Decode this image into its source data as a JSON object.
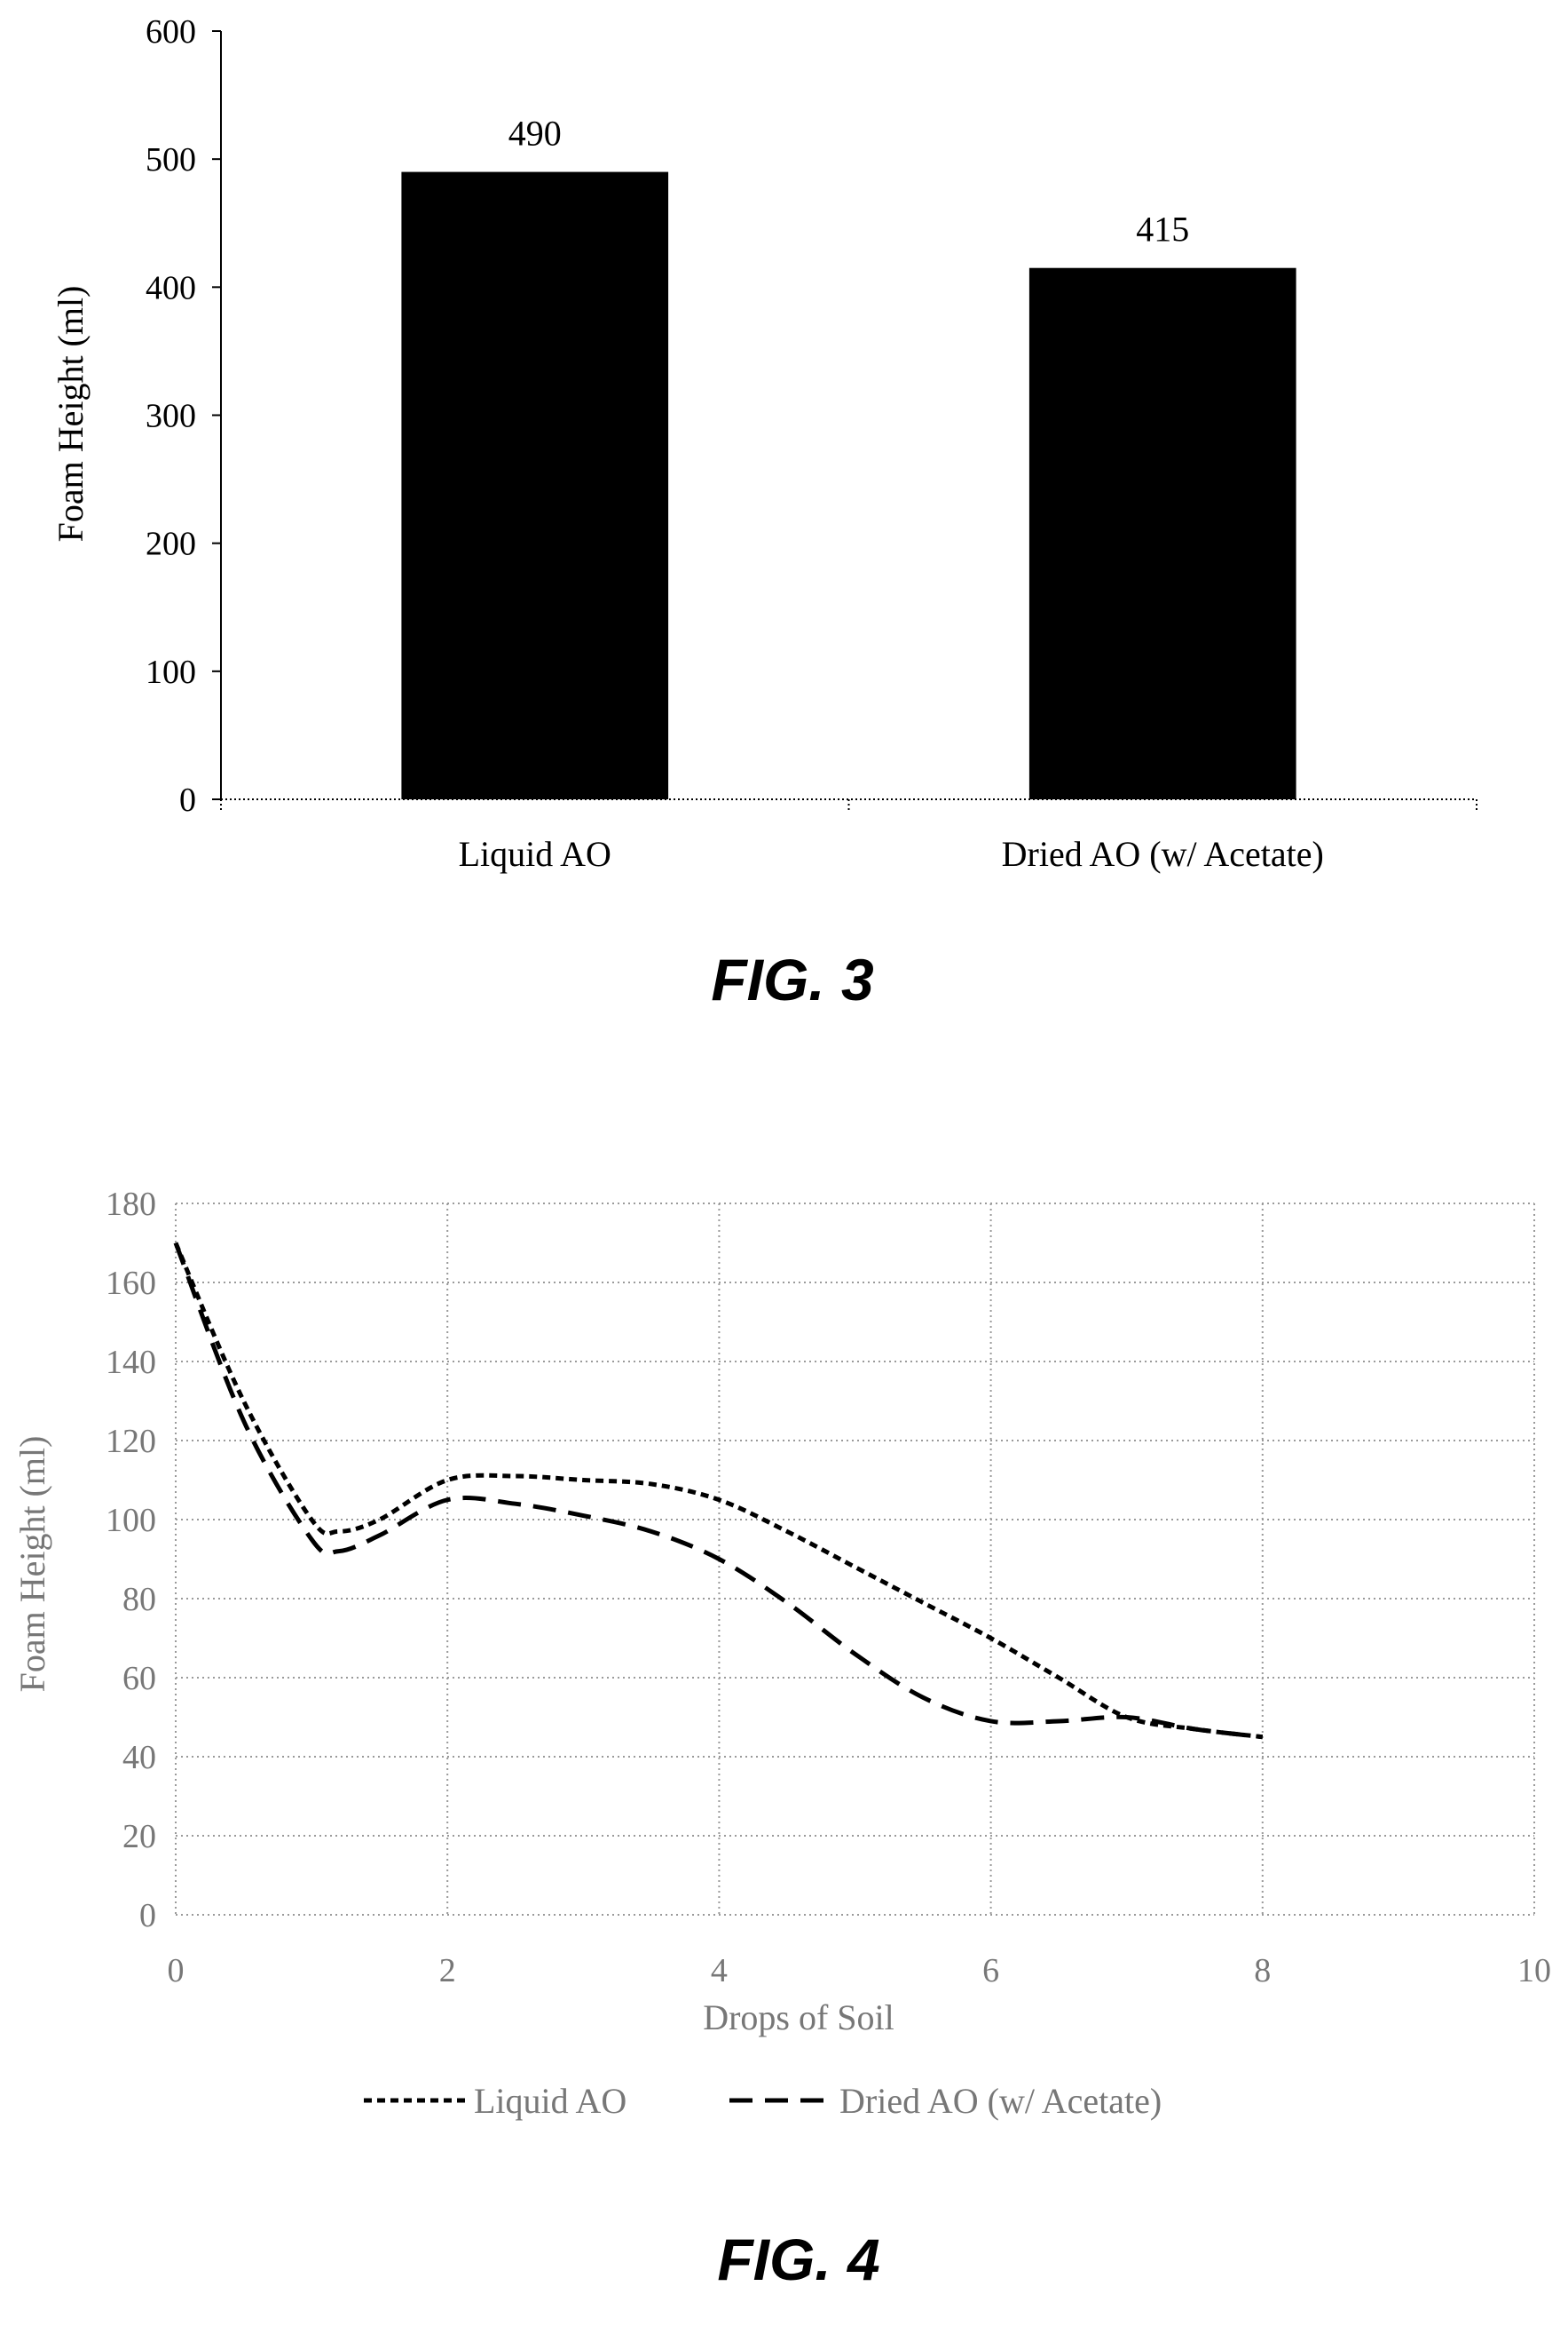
{
  "chart_data": [
    {
      "type": "bar",
      "categories": [
        "Liquid AO",
        "Dried AO (w/ Acetate)"
      ],
      "values": [
        490,
        415
      ],
      "data_labels": [
        "490",
        "415"
      ],
      "title": "",
      "xlabel": "",
      "ylabel": "Foam Height (ml)",
      "ylim": [
        0,
        600
      ],
      "yticks": [
        "0",
        "100",
        "200",
        "300",
        "400",
        "500",
        "600"
      ],
      "grid": false,
      "bar_color": "#000000",
      "caption": "FIG. 3"
    },
    {
      "type": "line",
      "title": "",
      "xlabel": "Drops of Soil",
      "ylabel": "Foam Height (ml)",
      "xlim": [
        0,
        10
      ],
      "ylim": [
        0,
        180
      ],
      "xticks": [
        "0",
        "2",
        "4",
        "6",
        "8",
        "10"
      ],
      "yticks": [
        "0",
        "20",
        "40",
        "60",
        "80",
        "100",
        "120",
        "140",
        "160",
        "180"
      ],
      "grid": true,
      "legend_position": "bottom",
      "series": [
        {
          "name": "Liquid AO",
          "style": "short-dash",
          "x": [
            0,
            0.5,
            1,
            1.2,
            1.5,
            2,
            2.5,
            3,
            3.5,
            4,
            4.5,
            5,
            5.5,
            6,
            6.5,
            7,
            7.5,
            8
          ],
          "y": [
            170,
            130,
            100,
            97,
            100,
            110,
            111,
            110,
            109,
            105,
            97,
            88,
            79,
            70,
            60,
            50,
            47,
            45
          ]
        },
        {
          "name": "Dried AO (w/ Acetate)",
          "style": "long-dash",
          "x": [
            0,
            0.5,
            1,
            1.2,
            1.5,
            2,
            2.5,
            3,
            3.5,
            4,
            4.5,
            5,
            5.5,
            6,
            6.5,
            7,
            7.5,
            8
          ],
          "y": [
            170,
            125,
            95,
            92,
            96,
            105,
            104,
            101,
            97,
            90,
            79,
            66,
            55,
            49,
            49,
            50,
            47,
            45
          ]
        }
      ],
      "caption": "FIG. 4"
    }
  ]
}
